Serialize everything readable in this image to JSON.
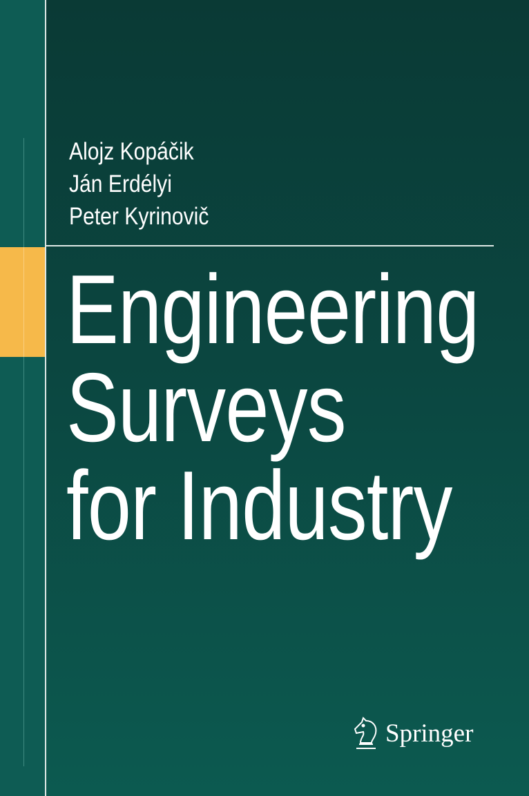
{
  "authors": [
    "Alojz Kopáčik",
    "Ján Erdélyi",
    "Peter Kyrinovič"
  ],
  "title_lines": [
    "Engineering",
    "Surveys",
    "for Industry"
  ],
  "publisher": {
    "name": "Springer",
    "logo_icon": "knight-chess-piece-icon"
  },
  "colors": {
    "background": "#0b4640",
    "strip": "#0e5c54",
    "accent": "#f6b94a",
    "text": "#ffffff"
  }
}
